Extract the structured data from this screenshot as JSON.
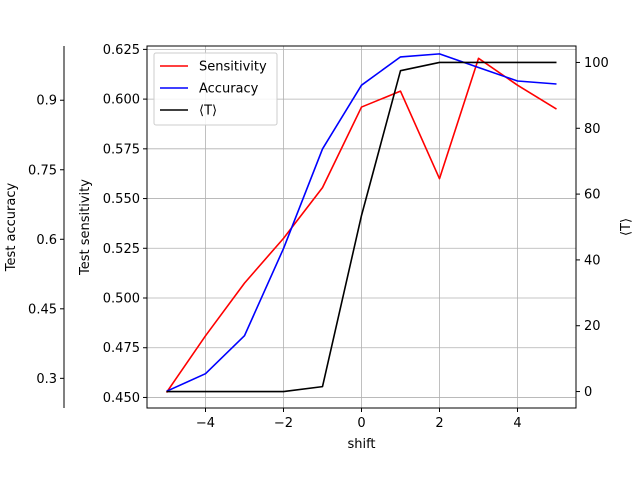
{
  "chart_data": {
    "type": "line",
    "xlabel": "shift",
    "x": [
      -5,
      -4,
      -3,
      -2,
      -1,
      0,
      1,
      2,
      3,
      4,
      5
    ],
    "xlim": [
      -5.5,
      5.5
    ],
    "xticks": [
      -4,
      -2,
      0,
      2,
      4
    ],
    "xtick_labels": [
      "−4",
      "−2",
      "0",
      "2",
      "4"
    ],
    "grid": true,
    "legend_placement": "upper-left",
    "axes": [
      {
        "id": "sensitivity",
        "side": "left-inner",
        "label": "Test sensitivity",
        "ylim": [
          0.4447,
          0.6267
        ],
        "ticks": [
          0.45,
          0.475,
          0.5,
          0.525,
          0.55,
          0.575,
          0.6,
          0.625
        ],
        "tick_labels": [
          "0.450",
          "0.475",
          "0.500",
          "0.525",
          "0.550",
          "0.575",
          "0.600",
          "0.625"
        ]
      },
      {
        "id": "accuracy",
        "side": "left-outer",
        "label": "Test accuracy",
        "ylim": [
          0.236,
          1.017
        ],
        "ticks": [
          0.3,
          0.45,
          0.6,
          0.75,
          0.9
        ],
        "tick_labels": [
          "0.3",
          "0.45",
          "0.6",
          "0.75",
          "0.9"
        ]
      },
      {
        "id": "t",
        "side": "right",
        "label": "⟨T⟩",
        "ylim": [
          -5,
          105
        ],
        "ticks": [
          0,
          20,
          40,
          60,
          80,
          100
        ],
        "tick_labels": [
          "0",
          "20",
          "40",
          "60",
          "80",
          "100"
        ]
      }
    ],
    "series": [
      {
        "name": "Sensitivity",
        "axis": "sensitivity",
        "color": "#ff0000",
        "values": [
          0.4525,
          0.481,
          0.5075,
          0.53,
          0.5555,
          0.596,
          0.604,
          0.56,
          0.6205,
          0.607,
          0.595
        ]
      },
      {
        "name": "Accuracy",
        "axis": "accuracy",
        "color": "#0000ff",
        "values": [
          0.272,
          0.31,
          0.392,
          0.58,
          0.795,
          0.9325,
          0.9935,
          1.0,
          0.9705,
          0.9415,
          0.935
        ]
      },
      {
        "name": "⟨T⟩",
        "axis": "t",
        "color": "#000000",
        "values": [
          0,
          0,
          0,
          0,
          1.5,
          53.5,
          97.5,
          100,
          100,
          100,
          100
        ]
      }
    ]
  }
}
